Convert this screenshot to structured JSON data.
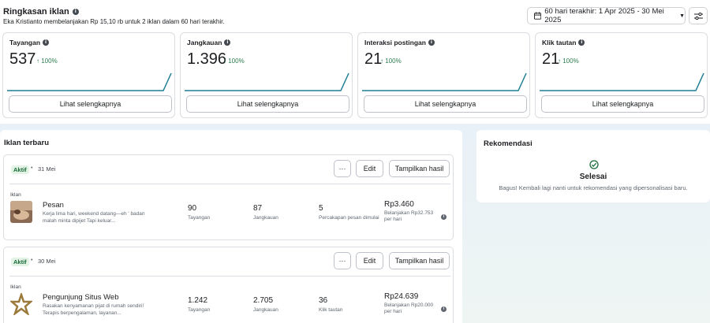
{
  "summary": {
    "title": "Ringkasan iklan",
    "subtitle": "Eka Kristianto membelanjakan Rp 15,10 rb untuk 2 iklan dalam 60 hari terakhir.",
    "date_range": "60 hari terakhir: 1 Apr 2025 - 30 Mei 2025"
  },
  "cards": [
    {
      "title": "Tayangan",
      "value": "537",
      "delta": "↑ 100%",
      "button": "Lihat selengkapnya"
    },
    {
      "title": "Jangkauan",
      "value": "1.396",
      "delta": "↑ 100%",
      "button": "Lihat selengkapnya"
    },
    {
      "title": "Interaksi postingan",
      "value": "21",
      "delta": "↑ 100%",
      "button": "Lihat selengkapnya"
    },
    {
      "title": "Klik tautan",
      "value": "21",
      "delta": "↑ 100%",
      "button": "Lihat selengkapnya"
    }
  ],
  "recent": {
    "title": "Iklan terbaru",
    "ads": [
      {
        "status": "Aktif",
        "date": "31 Mei",
        "more_label": "···",
        "edit_label": "Edit",
        "results_label": "Tampilkan hasil",
        "type_label": "Iklan",
        "name": "Pesan",
        "description": "Kerja lima hari, weekend datang—eh ' badan malah minta dipijet Tapi keluar...",
        "metrics": [
          {
            "value": "90",
            "label": "Tayangan"
          },
          {
            "value": "87",
            "label": "Jangkauan"
          },
          {
            "value": "5",
            "label": "Percakapan pesan dimulai"
          }
        ],
        "spend": "Rp3.460",
        "spend_label": "Belanjakan Rp32.753 per hari"
      },
      {
        "status": "Aktif",
        "date": "30 Mei",
        "more_label": "···",
        "edit_label": "Edit",
        "results_label": "Tampilkan hasil",
        "type_label": "Iklan",
        "name": "Pengunjung Situs Web",
        "description": "Rasakan kenyamanan pijat di rumah sendiri! Terapis berpengalaman, layanan...",
        "metrics": [
          {
            "value": "1.242",
            "label": "Tayangan"
          },
          {
            "value": "2.705",
            "label": "Jangkauan"
          },
          {
            "value": "36",
            "label": "Klik tautan"
          }
        ],
        "spend": "Rp24.639",
        "spend_label": "Belanjakan Rp20.000 per hari"
      }
    ]
  },
  "recommendations": {
    "title": "Rekomendasi",
    "status": "Selesai",
    "message": "Bagus! Kembali lagi nanti untuk rekomendasi yang dipersonalisasi baru."
  },
  "colors": {
    "accent_line": "#1f7f93",
    "positive": "#2e7d50",
    "badge_bg": "#e3f3e6"
  },
  "icons": {
    "info": "info-icon",
    "calendar": "calendar-icon",
    "caret": "caret-down-icon",
    "filter": "sliders-icon",
    "check": "check-circle-icon"
  }
}
